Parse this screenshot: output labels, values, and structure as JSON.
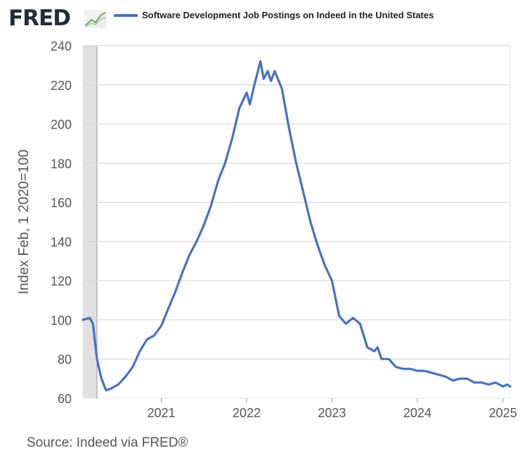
{
  "header": {
    "logo_text": "FRED",
    "logo_mark": "trend-line-icon"
  },
  "colors": {
    "series": "#4472c4",
    "grid": "#d9d9d9",
    "recession": "#e1e1e1",
    "axis_text": "#555555"
  },
  "source": "Source: Indeed via FRED®",
  "chart_data": {
    "type": "line",
    "title": "",
    "ylabel": "Index Feb, 1 2020=100",
    "xlabel": "",
    "ylim": [
      60,
      240
    ],
    "xlim": [
      "2020-02-01",
      "2025-02-01"
    ],
    "yticks": [
      60,
      80,
      100,
      120,
      140,
      160,
      180,
      200,
      220,
      240
    ],
    "xticks": [
      {
        "label": "2021",
        "date": "2021-01-01"
      },
      {
        "label": "2022",
        "date": "2022-01-01"
      },
      {
        "label": "2023",
        "date": "2023-01-01"
      },
      {
        "label": "2024",
        "date": "2024-01-01"
      },
      {
        "label": "2025",
        "date": "2025-01-01"
      }
    ],
    "recession": {
      "start": "2020-02-01",
      "end": "2020-04-01"
    },
    "grid": true,
    "legend": "top",
    "series": [
      {
        "name": "Software Development Job Postings on Indeed in the United States",
        "points": [
          [
            "2020-02-01",
            100
          ],
          [
            "2020-03-01",
            101
          ],
          [
            "2020-03-15",
            98
          ],
          [
            "2020-04-01",
            80
          ],
          [
            "2020-04-20",
            70
          ],
          [
            "2020-05-10",
            64
          ],
          [
            "2020-06-01",
            65
          ],
          [
            "2020-07-01",
            67
          ],
          [
            "2020-08-01",
            71
          ],
          [
            "2020-09-01",
            76
          ],
          [
            "2020-10-01",
            84
          ],
          [
            "2020-11-01",
            90
          ],
          [
            "2020-12-01",
            92
          ],
          [
            "2021-01-01",
            97
          ],
          [
            "2021-02-01",
            106
          ],
          [
            "2021-03-01",
            114
          ],
          [
            "2021-04-01",
            124
          ],
          [
            "2021-05-01",
            133
          ],
          [
            "2021-06-01",
            140
          ],
          [
            "2021-07-01",
            148
          ],
          [
            "2021-08-01",
            158
          ],
          [
            "2021-09-01",
            171
          ],
          [
            "2021-10-01",
            180
          ],
          [
            "2021-11-01",
            193
          ],
          [
            "2021-12-01",
            208
          ],
          [
            "2022-01-01",
            216
          ],
          [
            "2022-01-15",
            210
          ],
          [
            "2022-02-01",
            219
          ],
          [
            "2022-03-01",
            232
          ],
          [
            "2022-03-15",
            223
          ],
          [
            "2022-04-01",
            227
          ],
          [
            "2022-04-15",
            222
          ],
          [
            "2022-05-01",
            227
          ],
          [
            "2022-06-01",
            218
          ],
          [
            "2022-07-01",
            198
          ],
          [
            "2022-08-01",
            180
          ],
          [
            "2022-09-01",
            165
          ],
          [
            "2022-10-01",
            150
          ],
          [
            "2022-11-01",
            138
          ],
          [
            "2022-12-01",
            128
          ],
          [
            "2023-01-01",
            120
          ],
          [
            "2023-02-01",
            102
          ],
          [
            "2023-03-01",
            98
          ],
          [
            "2023-04-01",
            101
          ],
          [
            "2023-05-01",
            98
          ],
          [
            "2023-06-01",
            86
          ],
          [
            "2023-07-01",
            84
          ],
          [
            "2023-07-15",
            86
          ],
          [
            "2023-08-01",
            80
          ],
          [
            "2023-09-01",
            80
          ],
          [
            "2023-10-01",
            76
          ],
          [
            "2023-11-01",
            75
          ],
          [
            "2023-12-01",
            75
          ],
          [
            "2024-01-01",
            74
          ],
          [
            "2024-02-01",
            74
          ],
          [
            "2024-03-01",
            73
          ],
          [
            "2024-04-01",
            72
          ],
          [
            "2024-05-01",
            71
          ],
          [
            "2024-06-01",
            69
          ],
          [
            "2024-07-01",
            70
          ],
          [
            "2024-08-01",
            70
          ],
          [
            "2024-09-01",
            68
          ],
          [
            "2024-10-01",
            68
          ],
          [
            "2024-11-01",
            67
          ],
          [
            "2024-12-01",
            68
          ],
          [
            "2025-01-01",
            66
          ],
          [
            "2025-01-20",
            67
          ],
          [
            "2025-02-01",
            66
          ]
        ]
      }
    ]
  }
}
